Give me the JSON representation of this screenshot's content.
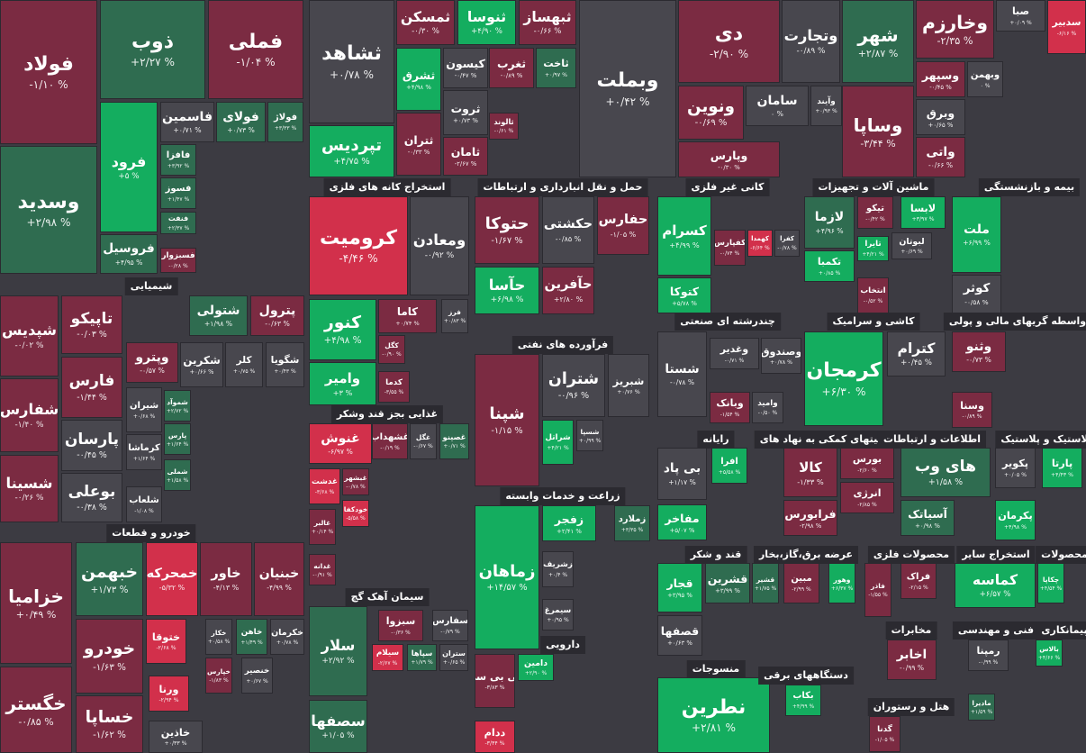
{
  "sectors": [
    {
      "label": "شیمیایی"
    },
    {
      "label": "خودرو و قطعات"
    },
    {
      "label": "استخراج کانه های فلزی"
    },
    {
      "label": "حمل و نقل انبارداری و ارتباطات"
    },
    {
      "label": "کانی غیر فلزی"
    },
    {
      "label": "ماشین آلات و تجهیزات"
    },
    {
      "label": "بیمه و بازنشستگی"
    },
    {
      "label": "فرآورده های نفتی"
    },
    {
      "label": "چندرشته ای صنعتی"
    },
    {
      "label": "کاشی و سرامیک"
    },
    {
      "label": "واسطه گریهای مالی و پولی"
    },
    {
      "label": "غذایی بجز قند وشکر"
    },
    {
      "label": "رایانه"
    },
    {
      "label": "فعالیتهای کمکی به نهاد های"
    },
    {
      "label": "اطلاعات و ارتباطات"
    },
    {
      "label": "لاستیک و پلاستیک"
    },
    {
      "label": "زراعت و خدمات وابسته"
    },
    {
      "label": "قند و شکر"
    },
    {
      "label": "عرضه برق،گاز،بخار"
    },
    {
      "label": "محصولات فلزی"
    },
    {
      "label": "استخراج سایر"
    },
    {
      "label": "محصولات"
    },
    {
      "label": "سیمان آهک گچ"
    },
    {
      "label": "مخابرات"
    },
    {
      "label": "فنی و مهندسی"
    },
    {
      "label": "پیمانکاری"
    },
    {
      "label": "دارویی"
    },
    {
      "label": "منسوجات"
    },
    {
      "label": "دستگاههای برقی"
    },
    {
      "label": "هتل و رستوران"
    }
  ],
  "tiles": [
    {
      "name": "فولاد",
      "change": "-۱/۱۰ %"
    },
    {
      "name": "ذوب",
      "change": "+۲/۲۷ %"
    },
    {
      "name": "فملی",
      "change": "-۱/۰۴ %"
    },
    {
      "name": "وسدید",
      "change": "+۲/۹۸ %"
    },
    {
      "name": "فرود",
      "change": "+۵ %"
    },
    {
      "name": "فروسیل",
      "change": "+۴/۹۵ %"
    },
    {
      "name": "فاسمین",
      "change": "+۰/۷۱ %"
    },
    {
      "name": "فولای",
      "change": "+۰/۷۳ %"
    },
    {
      "name": "فولاژ",
      "change": "+۳/۳۳ %"
    },
    {
      "name": "فافزا",
      "change": "+۳/۹۲ %"
    },
    {
      "name": "فسوز",
      "change": "+۱/۴۷ %"
    },
    {
      "name": "فنفت",
      "change": "+۲/۳۷ %"
    },
    {
      "name": "فسبزوار",
      "change": "-۰/۲۸ %"
    },
    {
      "name": "ثشاهد",
      "change": "+۰/۷۸ %"
    },
    {
      "name": "ثمسکن",
      "change": "-۰/۳۰ %"
    },
    {
      "name": "ثنوسا",
      "change": "+۴/۹۰ %"
    },
    {
      "name": "ثبهساز",
      "change": "-۰/۶۶ %"
    },
    {
      "name": "ثشرق",
      "change": "+۴/۹۸ %"
    },
    {
      "name": "کیسون",
      "change": "-۰/۴۷ %"
    },
    {
      "name": "ثغرب",
      "change": "-۰/۸۹ %"
    },
    {
      "name": "ثاخت",
      "change": "+۰/۹۷ %"
    },
    {
      "name": "ثروت",
      "change": "+۰/۷۳ %"
    },
    {
      "name": "ثالوند",
      "change": "-۰/۶۱ %"
    },
    {
      "name": "ثتران",
      "change": "-۰/۳۳ %"
    },
    {
      "name": "ثامان",
      "change": "-۲/۶۷ %"
    },
    {
      "name": "تپردیس",
      "change": "+۴/۷۵ %"
    },
    {
      "name": "وبملت",
      "change": "+۰/۴۲ %"
    },
    {
      "name": "دی",
      "change": "-۲/۹۰ %"
    },
    {
      "name": "وتجارت",
      "change": "-۰/۸۹ %"
    },
    {
      "name": "شهر",
      "change": "+۲/۸۷ %"
    },
    {
      "name": "وخارزم",
      "change": "-۲/۳۵ %"
    },
    {
      "name": "صبا",
      "change": "+۰/۰۹ %"
    },
    {
      "name": "سدبیر",
      "change": "-۶/۱۶ %"
    },
    {
      "name": "ونوین",
      "change": "-۰/۶۹ %"
    },
    {
      "name": "وپارس",
      "change": "-۰/۳۰ %"
    },
    {
      "name": "سامان",
      "change": "۰ %"
    },
    {
      "name": "وآیند",
      "change": "+۰/۹۳ %"
    },
    {
      "name": "وساپا",
      "change": "-۳/۴۴ %"
    },
    {
      "name": "وسپهر",
      "change": "-۰/۴۵ %"
    },
    {
      "name": "وبهمن",
      "change": "۰ %"
    },
    {
      "name": "وبرق",
      "change": "+۰/۶۵ %"
    },
    {
      "name": "واتی",
      "change": "-۰/۶۶ %"
    },
    {
      "name": "کرومیت",
      "change": "-۴/۴۶ %"
    },
    {
      "name": "ومعادن",
      "change": "-۰/۹۲ %"
    },
    {
      "name": "حتوکا",
      "change": "-۱/۶۷ %"
    },
    {
      "name": "حکشتی",
      "change": "-۰/۸۵ %"
    },
    {
      "name": "حفارس",
      "change": "-۱/۰۵ %"
    },
    {
      "name": "حآسا",
      "change": "+۶/۹۸ %"
    },
    {
      "name": "حآفرین",
      "change": "+۲/۸۰ %"
    },
    {
      "name": "کسرام",
      "change": "+۴/۹۹ %"
    },
    {
      "name": "کفپارس",
      "change": "-۰/۷۴ %"
    },
    {
      "name": "کهمدا",
      "change": "-۶/۶۴ %"
    },
    {
      "name": "کفرا",
      "change": "-۰/۷۸ %"
    },
    {
      "name": "کتوکا",
      "change": "+۵/۷۸ %"
    },
    {
      "name": "لازما",
      "change": "+۴/۹۶ %"
    },
    {
      "name": "تیکو",
      "change": "-۰/۴۲ %"
    },
    {
      "name": "لابسا",
      "change": "+۳/۹۷ %"
    },
    {
      "name": "تکمبا",
      "change": "+۰/۸۵ %"
    },
    {
      "name": "لبوتان",
      "change": "+۰/۶۹ %"
    },
    {
      "name": "تایرا",
      "change": "+۴/۲۱ %"
    },
    {
      "name": "انتخاب",
      "change": "-۰/۵۲ %"
    },
    {
      "name": "ملت",
      "change": "+۶/۹۹ %"
    },
    {
      "name": "کوثر",
      "change": "-۰/۵۸ %"
    },
    {
      "name": "شپدیس",
      "change": "-۰/۰۲ %"
    },
    {
      "name": "تاپیکو",
      "change": "-۰/۰۳ %"
    },
    {
      "name": "شتولی",
      "change": "+۱/۹۸ %"
    },
    {
      "name": "پترول",
      "change": "-۰/۶۳ %"
    },
    {
      "name": "فارس",
      "change": "-۱/۴۴ %"
    },
    {
      "name": "وپترو",
      "change": "-۰/۵۷ %"
    },
    {
      "name": "شکرین",
      "change": "+۰/۶۶ %"
    },
    {
      "name": "کلر",
      "change": "+۰/۷۵ %"
    },
    {
      "name": "شگویا",
      "change": "+۰/۴۳ %"
    },
    {
      "name": "شفارس",
      "change": "-۱/۴۰ %"
    },
    {
      "name": "پارسان",
      "change": "-۰/۴۵ %"
    },
    {
      "name": "شیران",
      "change": "+۰/۶۸ %"
    },
    {
      "name": "شموآد",
      "change": "+۲/۷۲ %"
    },
    {
      "name": "کرماشا",
      "change": "+۱/۶۴ %"
    },
    {
      "name": "شسینا",
      "change": "-۰/۲۶ %"
    },
    {
      "name": "بوعلی",
      "change": "-۰/۳۸ %"
    },
    {
      "name": "شلعاب",
      "change": "-۱/۰۸ %"
    },
    {
      "name": "شملی",
      "change": "+۱/۵۸ %"
    },
    {
      "name": "پارس",
      "change": "+۱/۶۴ %"
    },
    {
      "name": "خزامیا",
      "change": "+۰/۴۹ %"
    },
    {
      "name": "خبهمن",
      "change": "+۱/۷۳ %"
    },
    {
      "name": "خمحرکه",
      "change": "-۵/۳۲ %"
    },
    {
      "name": "خاور",
      "change": "-۴/۱۳ %"
    },
    {
      "name": "خبنیان",
      "change": "-۴/۹۹ %"
    },
    {
      "name": "خودرو",
      "change": "-۱/۶۳ %"
    },
    {
      "name": "ختوقا",
      "change": "-۲/۶۸ %"
    },
    {
      "name": "خکار",
      "change": "+۰/۵۸ %"
    },
    {
      "name": "خاهن",
      "change": "+۱/۴۹ %"
    },
    {
      "name": "خکرمان",
      "change": "+۰/۷۸ %"
    },
    {
      "name": "خگستر",
      "change": "-۰/۸۵ %"
    },
    {
      "name": "خساپا",
      "change": "-۱/۶۲ %"
    },
    {
      "name": "ورنا",
      "change": "-۲/۹۴ %"
    },
    {
      "name": "خپارس",
      "change": "-۱/۸۳ %"
    },
    {
      "name": "خنصیر",
      "change": "+۰/۶۷ %"
    },
    {
      "name": "خاذین",
      "change": "+۰/۳۳ %"
    },
    {
      "name": "کنور",
      "change": "+۴/۹۸ %"
    },
    {
      "name": "کاما",
      "change": "+۰/۷۴ %"
    },
    {
      "name": "فرز",
      "change": "+۰/۸۳ %"
    },
    {
      "name": "کگل",
      "change": "-۰/۹۰ %"
    },
    {
      "name": "کدما",
      "change": "-۳/۵۵ %"
    },
    {
      "name": "وامیر",
      "change": "+۳ %"
    },
    {
      "name": "غنوش",
      "change": "-۶/۹۷ %"
    },
    {
      "name": "غشهداب",
      "change": "-۰/۱۹ %"
    },
    {
      "name": "غگل",
      "change": "-۰/۶۷ %"
    },
    {
      "name": "غصینو",
      "change": "+۰/۷۱ %"
    },
    {
      "name": "غدشت",
      "change": "-۳/۶۸ %"
    },
    {
      "name": "غبشهر",
      "change": "-۰/۷۸ %"
    },
    {
      "name": "خودکفا",
      "change": "-۵/۵۸ %"
    },
    {
      "name": "غالبر",
      "change": "+۰/۱۴ %"
    },
    {
      "name": "غدانه",
      "change": "-۰/۹۱ %"
    },
    {
      "name": "سلار",
      "change": "+۲/۹۲ %"
    },
    {
      "name": "سبزوا",
      "change": "-۰/۳۶ %"
    },
    {
      "name": "سفارس",
      "change": "-۰/۷۹ %"
    },
    {
      "name": "سیلام",
      "change": "-۲/۶۷ %"
    },
    {
      "name": "سپاها",
      "change": "+۱/۷۹ %"
    },
    {
      "name": "ستران",
      "change": "+۰/۶۵ %"
    },
    {
      "name": "سصفها",
      "change": "+۱/۰۵ %"
    },
    {
      "name": "شپنا",
      "change": "-۱/۱۵ %"
    },
    {
      "name": "شتران",
      "change": "-۰/۹۶ %"
    },
    {
      "name": "شبریز",
      "change": "+۰/۷۶ %"
    },
    {
      "name": "شراتل",
      "change": "+۴/۲۱ %"
    },
    {
      "name": "شسپا",
      "change": "+۰/۹۹ %"
    },
    {
      "name": "زماهان",
      "change": "+۱۴/۵۷ %"
    },
    {
      "name": "زفجر",
      "change": "+۲/۴۱ %"
    },
    {
      "name": "زملارد",
      "change": "+۳/۳۵ %"
    },
    {
      "name": "زشریف",
      "change": "+۰/۴ %"
    },
    {
      "name": "سیمرغ",
      "change": "+۰/۹۵ %"
    },
    {
      "name": "کی بی سی",
      "change": "-۳/۸۳ %"
    },
    {
      "name": "دامین",
      "change": "+۲/۹۰ %"
    },
    {
      "name": "ددام",
      "change": "-۳/۴۴ %"
    },
    {
      "name": "شستا",
      "change": "-۰/۷۸ %"
    },
    {
      "name": "وغدیر",
      "change": "-۰/۷۱ %"
    },
    {
      "name": "وصندوق",
      "change": "+۰/۷۸ %"
    },
    {
      "name": "وبانک",
      "change": "-۱/۵۴ %"
    },
    {
      "name": "وامید",
      "change": "-۰/۵۰ %"
    },
    {
      "name": "افرا",
      "change": "+۵/۵۸ %"
    },
    {
      "name": "بی پاد",
      "change": "+۱/۱۷ %"
    },
    {
      "name": "مفاخر",
      "change": "+۵/۰۷ %"
    },
    {
      "name": "قجار",
      "change": "+۳/۹۵ %"
    },
    {
      "name": "قشرین",
      "change": "+۳/۹۹ %"
    },
    {
      "name": "قشیر",
      "change": "+۱/۷۵ %"
    },
    {
      "name": "قصفها",
      "change": "+۰/۶۳ %"
    },
    {
      "name": "نطرین",
      "change": "+۲/۸۱ %"
    },
    {
      "name": "کرمجان",
      "change": "+۶/۳۰ %"
    },
    {
      "name": "کترام",
      "change": "+۰/۴۵ %"
    },
    {
      "name": "کالا",
      "change": "-۱/۳۳ %"
    },
    {
      "name": "بورس",
      "change": "-۲/۶۰ %"
    },
    {
      "name": "انرژی",
      "change": "-۲/۸۵ %"
    },
    {
      "name": "فرابورس",
      "change": "-۲/۹۸ %"
    },
    {
      "name": "های وب",
      "change": "+۱/۵۸ %"
    },
    {
      "name": "آسیاتک",
      "change": "+۰/۹۸ %"
    },
    {
      "name": "مبین",
      "change": "-۲/۹۹ %"
    },
    {
      "name": "وهور",
      "change": "+۶/۳۷ %"
    },
    {
      "name": "فاذر",
      "change": "-۱/۵۵ %"
    },
    {
      "name": "فراک",
      "change": "-۲/۱۵ %"
    },
    {
      "name": "اخابر",
      "change": "-۰/۹۹ %"
    },
    {
      "name": "بکاب",
      "change": "+۴/۹۹ %"
    },
    {
      "name": "گدنا",
      "change": "-۱/۰۵ %"
    },
    {
      "name": "وثنو",
      "change": "-۰/۷۳ %"
    },
    {
      "name": "وسنا",
      "change": "-۰/۸۹ %"
    },
    {
      "name": "پارتا",
      "change": "+۴/۴۳ %"
    },
    {
      "name": "پکویر",
      "change": "+۰/۰۵ %"
    },
    {
      "name": "پکرمان",
      "change": "+۴/۹۸ %"
    },
    {
      "name": "کماسه",
      "change": "+۶/۵۷ %"
    },
    {
      "name": "چکاپا",
      "change": "+۴/۵۴ %"
    },
    {
      "name": "رمپنا",
      "change": "-۰/۹۹ %"
    },
    {
      "name": "بالاس",
      "change": "+۴/۶۶ %"
    },
    {
      "name": "مادیرا",
      "change": "+۱/۵۹ %"
    }
  ]
}
